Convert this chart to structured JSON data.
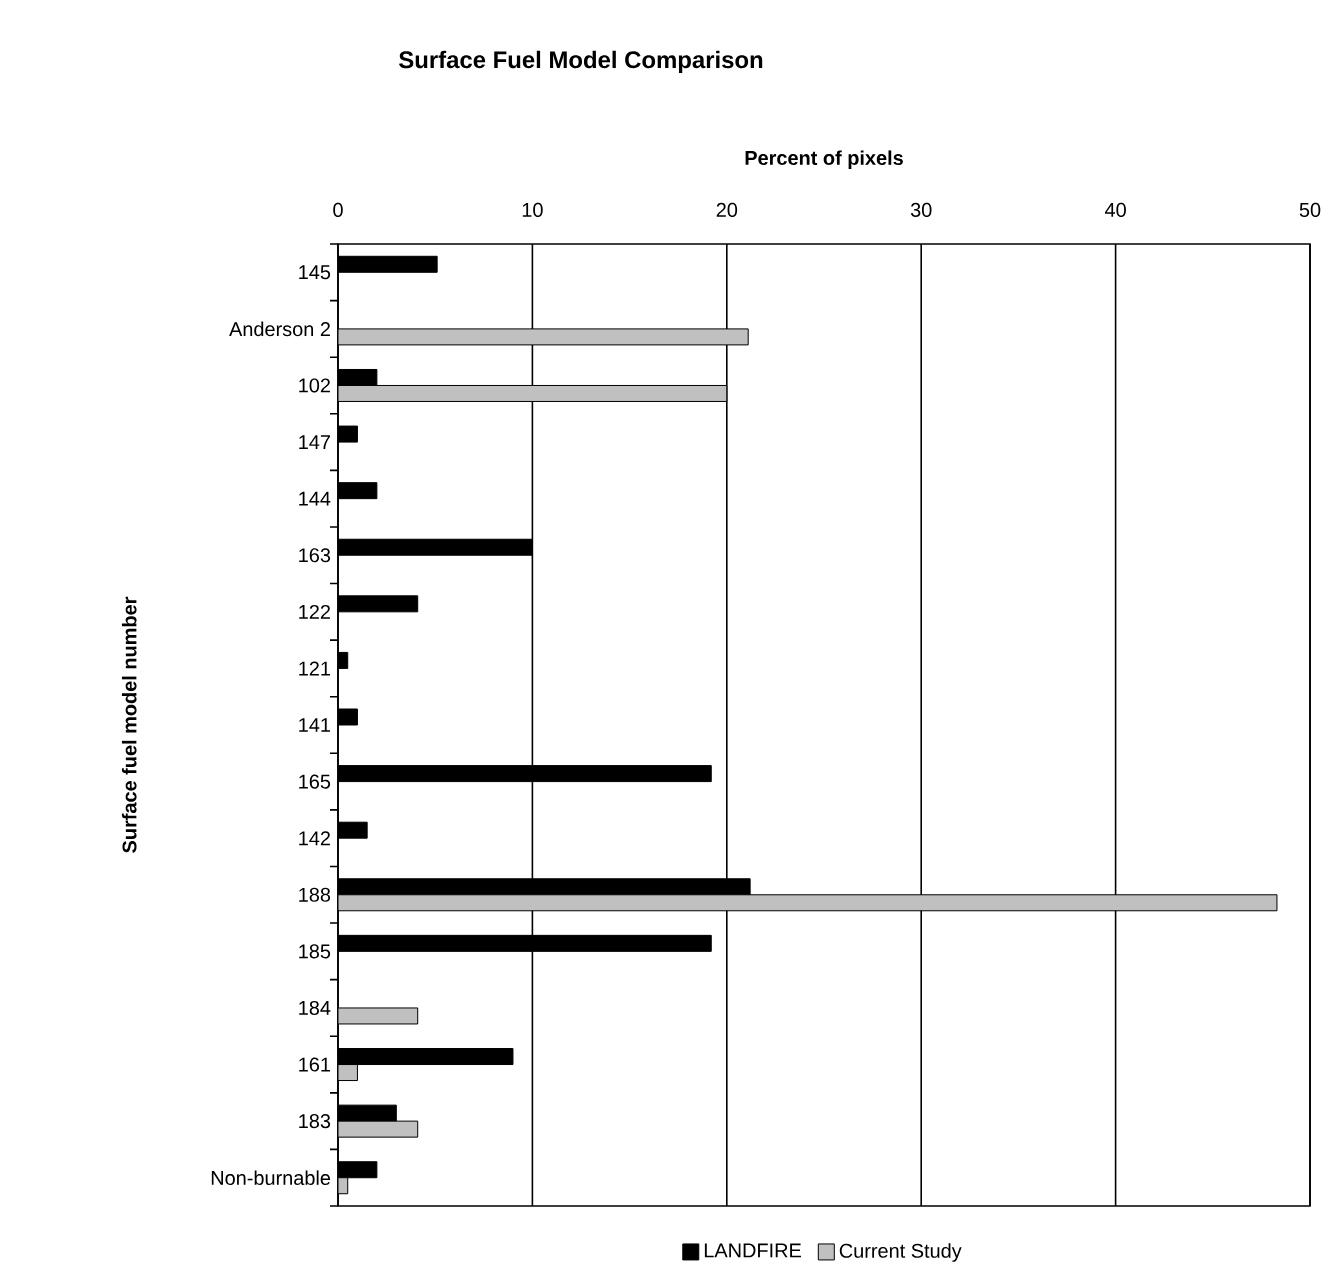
{
  "chart_data": {
    "type": "bar",
    "orientation": "horizontal",
    "title": "Surface Fuel Model Comparison",
    "xlabel": "Percent of pixels",
    "ylabel": "Surface fuel model number",
    "categories": [
      "145",
      "Anderson 2",
      "102",
      "147",
      "144",
      "163",
      "122",
      "121",
      "141",
      "165",
      "142",
      "188",
      "185",
      "184",
      "161",
      "183",
      "Non-burnable"
    ],
    "series": [
      {
        "name": "LANDFIRE",
        "color": "#000000",
        "values": [
          5.1,
          null,
          2.0,
          1.0,
          2.0,
          10.0,
          4.1,
          0.5,
          1.0,
          19.2,
          1.5,
          21.2,
          19.2,
          null,
          9.0,
          3.0,
          2.0
        ]
      },
      {
        "name": "Current Study",
        "color": "#c0c0c0",
        "values": [
          null,
          21.1,
          20.0,
          null,
          null,
          null,
          null,
          null,
          null,
          null,
          null,
          48.3,
          null,
          4.1,
          1.0,
          4.1,
          0.5
        ]
      }
    ],
    "xlim": [
      0,
      50
    ],
    "xticks": [
      0,
      10,
      20,
      30,
      40,
      50
    ],
    "grid": "x",
    "legend": "bottom"
  }
}
